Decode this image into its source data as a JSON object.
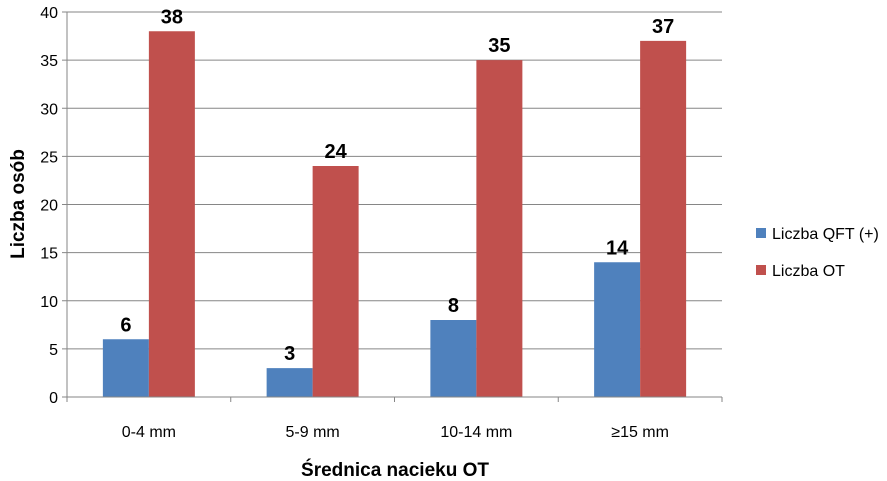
{
  "chart_data": {
    "type": "bar",
    "categories": [
      "0-4 mm",
      "5-9 mm",
      "10-14 mm",
      "≥15 mm"
    ],
    "series": [
      {
        "name": "Liczba QFT (+)",
        "values": [
          6,
          3,
          8,
          14
        ],
        "color": "#4F81BD"
      },
      {
        "name": "Liczba OT",
        "values": [
          38,
          24,
          35,
          37
        ],
        "color": "#C0504D"
      }
    ],
    "xlabel": "Średnica nacieku OT",
    "ylabel": "Liczba osób",
    "ylim": [
      0,
      40
    ],
    "yticks": [
      0,
      5,
      10,
      15,
      20,
      25,
      30,
      35,
      40
    ],
    "grid": true,
    "legend": "right"
  }
}
